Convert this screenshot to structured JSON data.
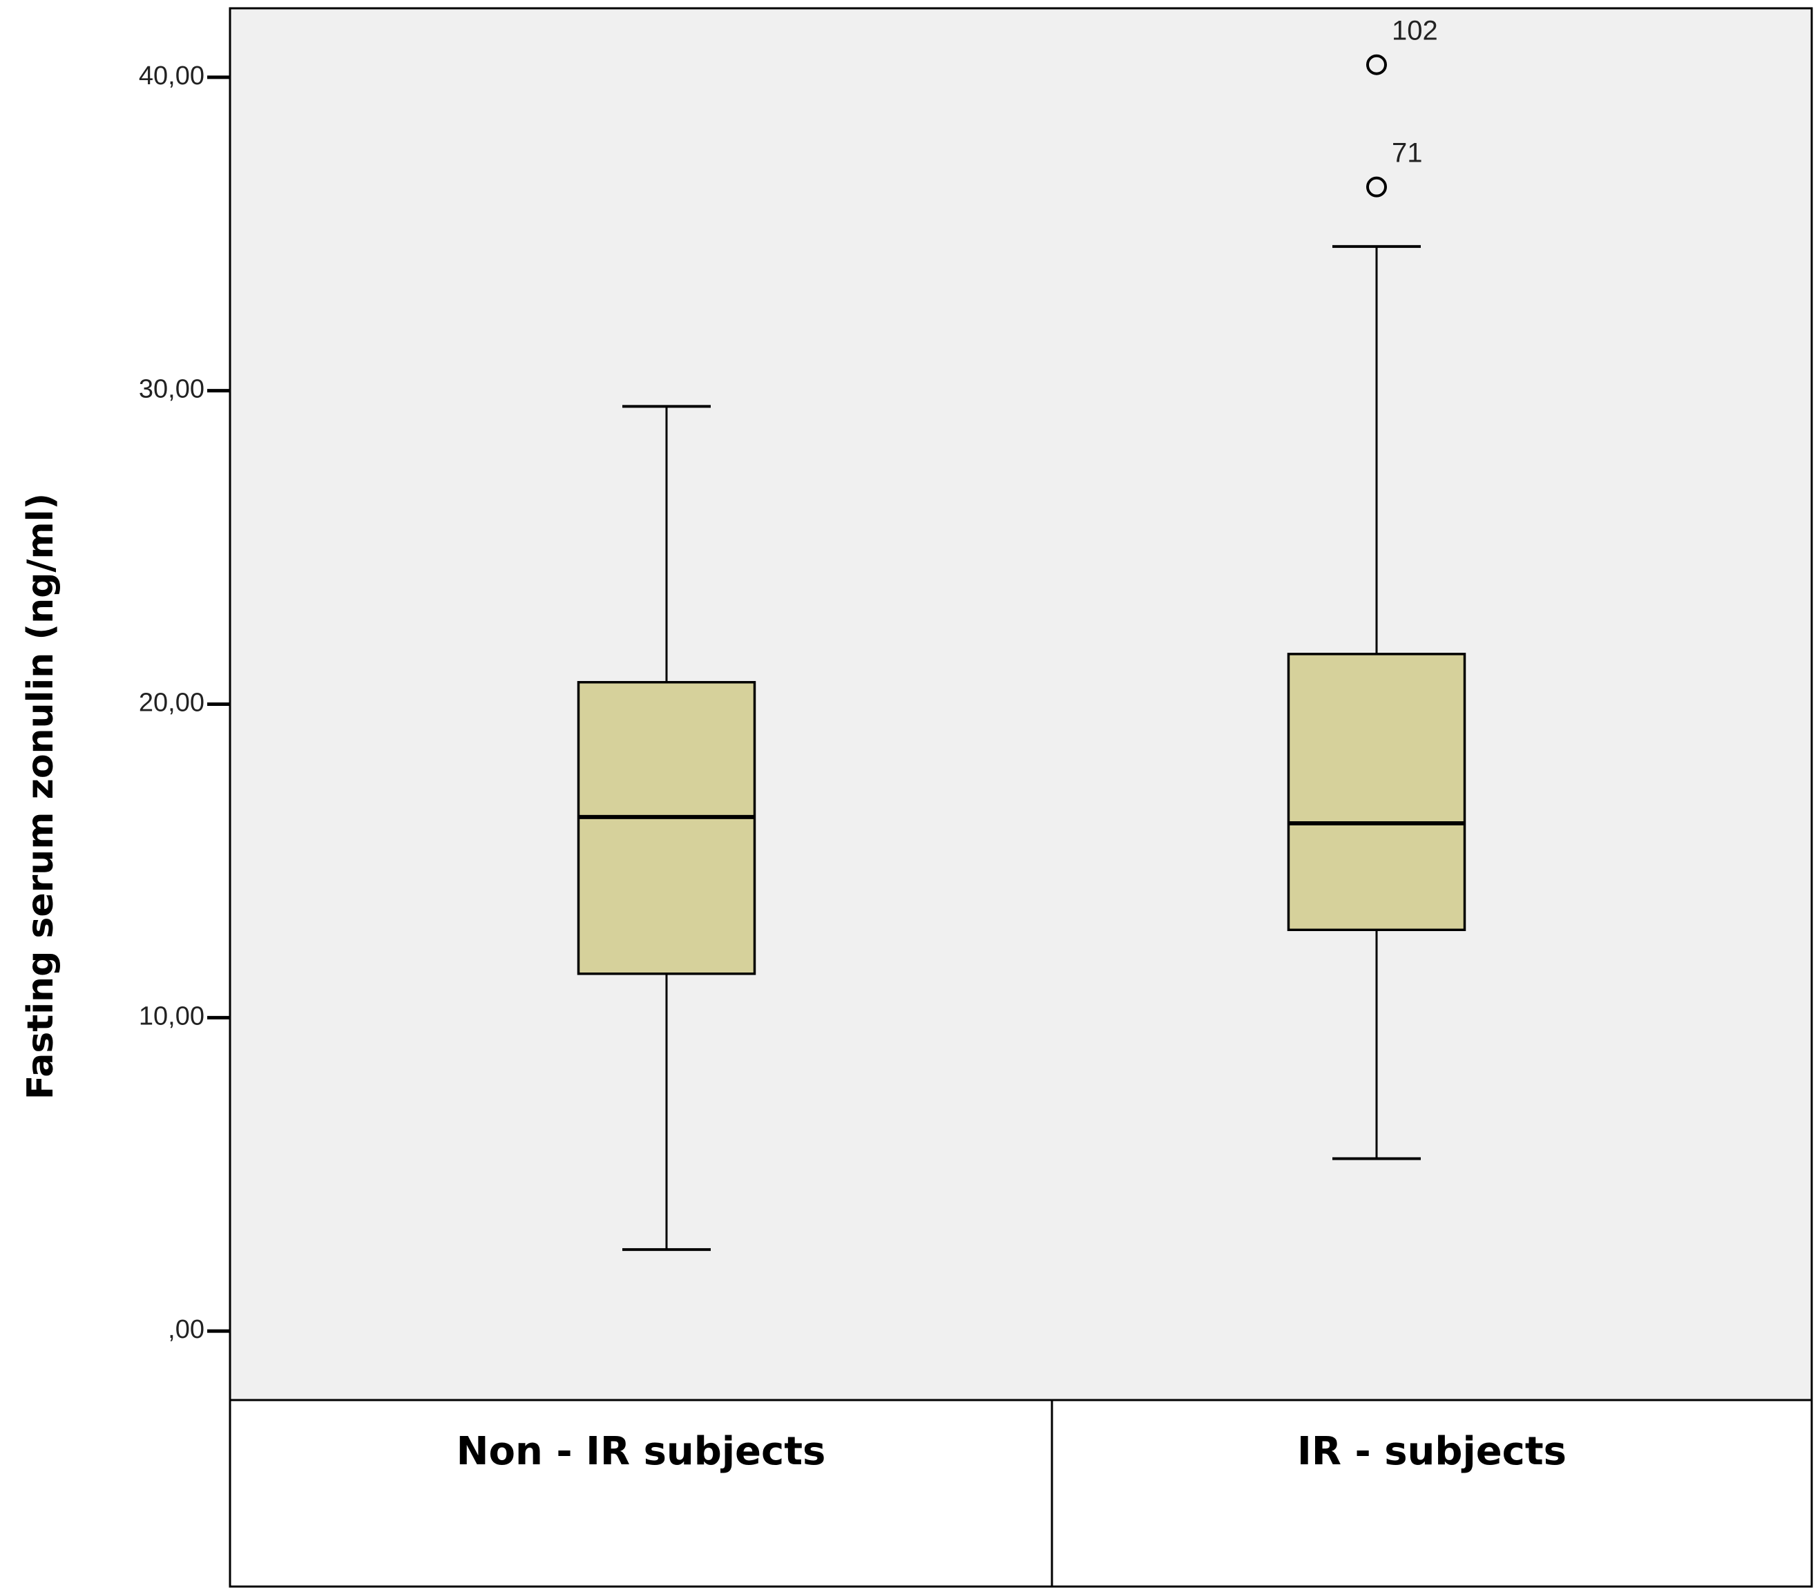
{
  "chart_data": {
    "type": "boxplot",
    "title": "",
    "xlabel": "",
    "ylabel": "Fasting serum zonulin (ng/ml)",
    "ylim": [
      -2.2,
      42.2
    ],
    "yticks": [
      0,
      10,
      20,
      30,
      40
    ],
    "ytick_labels": [
      ",00",
      "10,00",
      "20,00",
      "30,00",
      "40,00"
    ],
    "grid": false,
    "legend": "none",
    "categories": [
      "Non - IR subjects",
      "IR - subjects"
    ],
    "boxes": [
      {
        "category": "Non - IR subjects",
        "whisker_low": 2.6,
        "q1": 11.4,
        "median": 16.4,
        "q3": 20.7,
        "whisker_high": 29.5,
        "outliers": []
      },
      {
        "category": "IR - subjects",
        "whisker_low": 5.5,
        "q1": 12.8,
        "median": 16.2,
        "q3": 21.6,
        "whisker_high": 34.6,
        "outliers": [
          {
            "value": 40.4,
            "label": "102"
          },
          {
            "value": 36.5,
            "label": "71"
          }
        ]
      }
    ],
    "colors": {
      "box_fill": "#d6d19b",
      "plot_background": "#f0f0f0",
      "line": "#000000"
    }
  }
}
